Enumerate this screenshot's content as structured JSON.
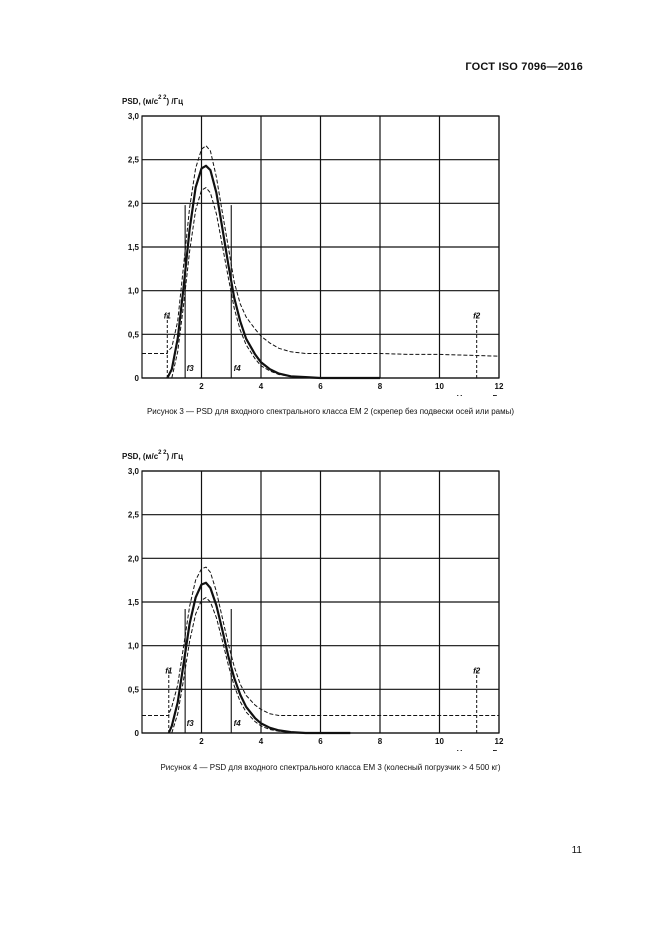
{
  "header": {
    "standard": "ГОСТ ISO 7096—2016"
  },
  "chart_data": [
    {
      "type": "line",
      "ylabel": "PSD, (м/с²)²/Гц",
      "ylabel_base": "PSD, (м/с",
      "ylabel_sup": "2 2",
      "ylabel_tail": ") /Гц",
      "xlabel": "Частота, Гц",
      "xlim": [
        0,
        12
      ],
      "ylim": [
        0,
        3.0
      ],
      "xticks": [
        {
          "v": 2,
          "label": "2"
        },
        {
          "v": 4,
          "label": "4"
        },
        {
          "v": 6,
          "label": "6"
        },
        {
          "v": 8,
          "label": "8"
        },
        {
          "v": 10,
          "label": "10"
        },
        {
          "v": 12,
          "label": "12"
        }
      ],
      "yticks": [
        {
          "v": 0,
          "label": "0"
        },
        {
          "v": 0.5,
          "label": "0,5"
        },
        {
          "v": 1.0,
          "label": "1,0"
        },
        {
          "v": 1.5,
          "label": "1,5"
        },
        {
          "v": 2.0,
          "label": "2,0"
        },
        {
          "v": 2.5,
          "label": "2,5"
        },
        {
          "v": 3.0,
          "label": "3,0"
        }
      ],
      "markers": [
        {
          "label": "f1",
          "x": 0.85,
          "y_top": 0.72,
          "style": "dashed",
          "label_x": 0.85,
          "label_y": 0.68,
          "anchor": "middle"
        },
        {
          "label": "f2",
          "x": 11.25,
          "y_top": 0.72,
          "style": "dashed",
          "label_x": 11.25,
          "label_y": 0.68,
          "anchor": "middle"
        },
        {
          "label": "f3",
          "x": 1.45,
          "y_top": 1.98,
          "style": "solid",
          "label_x": 1.5,
          "label_y": 0.08,
          "anchor": "start"
        },
        {
          "label": "f4",
          "x": 3.0,
          "y_top": 1.98,
          "style": "solid",
          "label_x": 3.08,
          "label_y": 0.08,
          "anchor": "start"
        }
      ],
      "series": [
        {
          "name": "upper limit",
          "style": "dashed",
          "x": [
            0,
            0.85,
            0.85,
            1.0,
            1.2,
            1.4,
            1.6,
            1.8,
            2.0,
            2.15,
            2.3,
            2.5,
            2.7,
            2.9,
            3.1,
            3.3,
            3.5,
            3.8,
            4.0,
            4.3,
            4.6,
            5.0,
            5.5,
            6.0,
            7.0,
            8.0,
            9.0,
            10.0,
            11.0,
            12.0
          ],
          "values": [
            0.28,
            0.28,
            0.3,
            0.35,
            0.65,
            1.3,
            1.95,
            2.4,
            2.62,
            2.66,
            2.6,
            2.3,
            1.9,
            1.5,
            1.1,
            0.85,
            0.7,
            0.56,
            0.48,
            0.4,
            0.34,
            0.3,
            0.28,
            0.28,
            0.28,
            0.28,
            0.27,
            0.27,
            0.26,
            0.25
          ]
        },
        {
          "name": "target",
          "style": "solid",
          "x": [
            0.85,
            1.0,
            1.2,
            1.4,
            1.6,
            1.8,
            2.0,
            2.15,
            2.3,
            2.5,
            2.7,
            2.9,
            3.1,
            3.3,
            3.5,
            3.8,
            4.0,
            4.3,
            4.6,
            5.0,
            5.5,
            6.0,
            7.0,
            8.0
          ],
          "values": [
            0.0,
            0.1,
            0.45,
            1.05,
            1.7,
            2.18,
            2.4,
            2.43,
            2.38,
            2.12,
            1.72,
            1.3,
            0.92,
            0.65,
            0.45,
            0.27,
            0.18,
            0.1,
            0.05,
            0.02,
            0.01,
            0.0,
            0.0,
            0.0
          ]
        },
        {
          "name": "lower limit",
          "style": "dashed",
          "x": [
            1.0,
            1.2,
            1.4,
            1.6,
            1.8,
            2.0,
            2.15,
            2.3,
            2.5,
            2.7,
            2.9,
            3.1,
            3.3,
            3.5,
            3.8,
            4.0,
            4.3,
            4.6,
            5.0,
            5.5,
            6.0
          ],
          "values": [
            0.0,
            0.3,
            0.85,
            1.45,
            1.92,
            2.15,
            2.18,
            2.12,
            1.88,
            1.52,
            1.15,
            0.8,
            0.55,
            0.38,
            0.22,
            0.14,
            0.08,
            0.04,
            0.02,
            0.0,
            0.0
          ]
        }
      ],
      "caption": "Рисунок 3 — PSD для входного спектрального класса EM 2 (скрепер без подвески осей или рамы)"
    },
    {
      "type": "line",
      "ylabel": "PSD, (м/с²)²/Гц",
      "ylabel_base": "PSD, (м/с",
      "ylabel_sup": "2 2",
      "ylabel_tail": ") /Гц",
      "xlabel": "Частота, Гц",
      "xlim": [
        0,
        12
      ],
      "ylim": [
        0,
        3.0
      ],
      "xticks": [
        {
          "v": 2,
          "label": "2"
        },
        {
          "v": 4,
          "label": "4"
        },
        {
          "v": 6,
          "label": "6"
        },
        {
          "v": 8,
          "label": "8"
        },
        {
          "v": 10,
          "label": "10"
        },
        {
          "v": 12,
          "label": "12"
        }
      ],
      "yticks": [
        {
          "v": 0,
          "label": "0"
        },
        {
          "v": 0.5,
          "label": "0,5"
        },
        {
          "v": 1.0,
          "label": "1,0"
        },
        {
          "v": 1.5,
          "label": "1,5"
        },
        {
          "v": 2.0,
          "label": "2,0"
        },
        {
          "v": 2.5,
          "label": "2,5"
        },
        {
          "v": 3.0,
          "label": "3,0"
        }
      ],
      "markers": [
        {
          "label": "f1",
          "x": 0.9,
          "y_top": 0.72,
          "style": "dashed",
          "label_x": 0.9,
          "label_y": 0.68,
          "anchor": "middle"
        },
        {
          "label": "f2",
          "x": 11.25,
          "y_top": 0.72,
          "style": "dashed",
          "label_x": 11.25,
          "label_y": 0.68,
          "anchor": "middle"
        },
        {
          "label": "f3",
          "x": 1.45,
          "y_top": 1.42,
          "style": "solid",
          "label_x": 1.5,
          "label_y": 0.08,
          "anchor": "start"
        },
        {
          "label": "f4",
          "x": 3.0,
          "y_top": 1.42,
          "style": "solid",
          "label_x": 3.08,
          "label_y": 0.08,
          "anchor": "start"
        }
      ],
      "series": [
        {
          "name": "upper limit",
          "style": "dashed",
          "x": [
            0,
            0.9,
            0.9,
            1.0,
            1.2,
            1.4,
            1.6,
            1.8,
            2.0,
            2.15,
            2.3,
            2.5,
            2.7,
            2.9,
            3.1,
            3.3,
            3.5,
            3.8,
            4.0,
            4.3,
            4.6,
            5.0,
            5.5,
            6.0,
            7.0,
            8.0,
            9.0,
            10.0,
            11.0,
            12.0
          ],
          "values": [
            0.2,
            0.2,
            0.22,
            0.3,
            0.55,
            1.0,
            1.45,
            1.75,
            1.88,
            1.9,
            1.84,
            1.62,
            1.32,
            1.02,
            0.76,
            0.56,
            0.43,
            0.32,
            0.27,
            0.22,
            0.2,
            0.2,
            0.2,
            0.2,
            0.2,
            0.2,
            0.2,
            0.2,
            0.2,
            0.2
          ]
        },
        {
          "name": "target",
          "style": "solid",
          "x": [
            0.9,
            1.0,
            1.2,
            1.4,
            1.6,
            1.8,
            2.0,
            2.15,
            2.3,
            2.5,
            2.7,
            2.9,
            3.1,
            3.3,
            3.5,
            3.8,
            4.0,
            4.3,
            4.6,
            5.0,
            5.5,
            6.0,
            7.0
          ],
          "values": [
            0.0,
            0.08,
            0.35,
            0.8,
            1.25,
            1.55,
            1.7,
            1.72,
            1.66,
            1.46,
            1.18,
            0.88,
            0.63,
            0.44,
            0.3,
            0.17,
            0.11,
            0.06,
            0.03,
            0.01,
            0.0,
            0.0,
            0.0
          ]
        },
        {
          "name": "lower limit",
          "style": "dashed",
          "x": [
            1.0,
            1.2,
            1.4,
            1.6,
            1.8,
            2.0,
            2.15,
            2.3,
            2.5,
            2.7,
            2.9,
            3.1,
            3.3,
            3.5,
            3.8,
            4.0,
            4.3,
            4.6,
            5.0,
            5.5,
            6.0
          ],
          "values": [
            0.0,
            0.22,
            0.62,
            1.05,
            1.36,
            1.52,
            1.55,
            1.5,
            1.32,
            1.06,
            0.78,
            0.54,
            0.36,
            0.24,
            0.13,
            0.08,
            0.04,
            0.02,
            0.01,
            0.0,
            0.0
          ]
        }
      ],
      "caption": "Рисунок 4 — PSD для входного спектрального класса EM 3 (колесный погрузчик > 4 500 кг)"
    }
  ],
  "footer": {
    "page_number": "11"
  }
}
